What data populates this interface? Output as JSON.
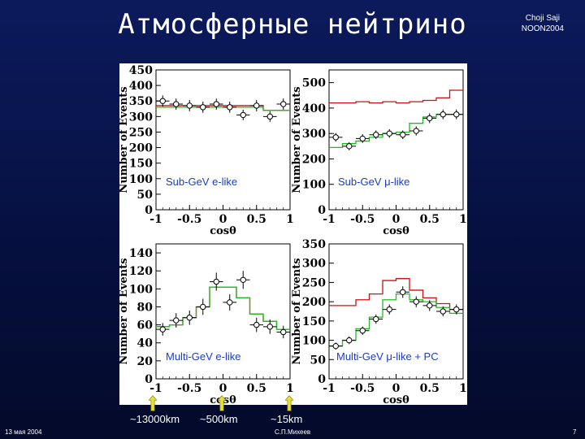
{
  "header": {
    "title": "Атмосферные нейтрино",
    "author_line1": "Choji Saji",
    "author_line2": "NOON2004"
  },
  "footer": {
    "date": "13 мая 2004",
    "author": "С.П.Михеев",
    "page_number": "7"
  },
  "baseline_labels": [
    "~13000km",
    "~500km",
    "~15km"
  ],
  "colors": {
    "background": "#0a1650",
    "mc_oscillation": "#22bb22",
    "mc_no_oscillation": "#cc1111",
    "panel_label": "#1a3cc8"
  },
  "chart_data": [
    {
      "type": "line",
      "label": "Sub-GeV e-like",
      "xlabel": "cosθ",
      "ylabel": "Number of Events",
      "xlim": [
        -1,
        1
      ],
      "ylim": [
        0,
        450
      ],
      "xticks": [
        "-1",
        "-0.5",
        "0",
        "0.5",
        "1"
      ],
      "yticks": [
        "0",
        "50",
        "100",
        "150",
        "200",
        "250",
        "300",
        "350",
        "400",
        "450"
      ],
      "x": [
        -0.9,
        -0.7,
        -0.5,
        -0.3,
        -0.1,
        0.1,
        0.3,
        0.5,
        0.7,
        0.9
      ],
      "data": [
        350,
        340,
        335,
        330,
        340,
        330,
        305,
        335,
        300,
        340
      ],
      "data_err": [
        18,
        18,
        18,
        18,
        18,
        18,
        17,
        18,
        17,
        18
      ],
      "mc_oscillation": [
        330,
        330,
        330,
        330,
        330,
        330,
        330,
        330,
        320,
        320
      ],
      "mc_no_oscillation": [
        335,
        335,
        335,
        335,
        335,
        335,
        335,
        335,
        320,
        320
      ]
    },
    {
      "type": "line",
      "label": "Sub-GeV μ-like",
      "xlabel": "cosθ",
      "ylabel": "Number of Events",
      "xlim": [
        -1,
        1
      ],
      "ylim": [
        0,
        550
      ],
      "xticks": [
        "-1",
        "-0.5",
        "0",
        "0.5",
        "1"
      ],
      "yticks": [
        "0",
        "100",
        "200",
        "300",
        "400",
        "500"
      ],
      "x": [
        -0.9,
        -0.7,
        -0.5,
        -0.3,
        -0.1,
        0.1,
        0.3,
        0.5,
        0.7,
        0.9
      ],
      "data": [
        285,
        250,
        280,
        295,
        300,
        295,
        310,
        360,
        375,
        375
      ],
      "data_err": [
        17,
        16,
        17,
        17,
        17,
        17,
        18,
        19,
        19,
        19
      ],
      "mc_oscillation": [
        245,
        260,
        270,
        285,
        300,
        305,
        340,
        365,
        375,
        375
      ],
      "mc_no_oscillation": [
        420,
        420,
        425,
        420,
        425,
        420,
        425,
        430,
        440,
        470
      ]
    },
    {
      "type": "line",
      "label": "Multi-GeV e-like",
      "xlabel": "cosθ",
      "ylabel": "Number of Events",
      "xlim": [
        -1,
        1
      ],
      "ylim": [
        0,
        150
      ],
      "xticks": [
        "-1",
        "-0.5",
        "0",
        "0.5",
        "1"
      ],
      "yticks": [
        "0",
        "20",
        "40",
        "60",
        "80",
        "100",
        "120",
        "140"
      ],
      "x": [
        -0.9,
        -0.7,
        -0.5,
        -0.3,
        -0.1,
        0.1,
        0.3,
        0.5,
        0.7,
        0.9
      ],
      "data": [
        55,
        65,
        68,
        80,
        108,
        85,
        110,
        60,
        58,
        52
      ],
      "data_err": [
        7,
        8,
        8,
        9,
        10,
        9,
        10,
        8,
        8,
        7
      ],
      "mc_oscillation": [
        58,
        60,
        68,
        80,
        102,
        102,
        90,
        72,
        64,
        55
      ],
      "mc_no_oscillation": [
        58,
        60,
        68,
        80,
        102,
        102,
        90,
        72,
        64,
        55
      ]
    },
    {
      "type": "line",
      "label": "Multi-GeV μ-like + PC",
      "xlabel": "cosθ",
      "ylabel": "Number of Events",
      "xlim": [
        -1,
        1
      ],
      "ylim": [
        0,
        350
      ],
      "xticks": [
        "-1",
        "-0.5",
        "0",
        "0.5",
        "1"
      ],
      "yticks": [
        "0",
        "50",
        "100",
        "150",
        "200",
        "250",
        "300",
        "350"
      ],
      "x": [
        -0.9,
        -0.7,
        -0.5,
        -0.3,
        -0.1,
        0.1,
        0.3,
        0.5,
        0.7,
        0.9
      ],
      "data": [
        85,
        100,
        125,
        155,
        180,
        225,
        200,
        190,
        175,
        180
      ],
      "data_err": [
        9,
        10,
        11,
        12,
        13,
        15,
        14,
        14,
        13,
        13
      ],
      "mc_oscillation": [
        85,
        100,
        130,
        160,
        205,
        220,
        205,
        200,
        185,
        170
      ],
      "mc_no_oscillation": [
        190,
        190,
        205,
        220,
        255,
        260,
        230,
        210,
        195,
        180
      ]
    }
  ]
}
